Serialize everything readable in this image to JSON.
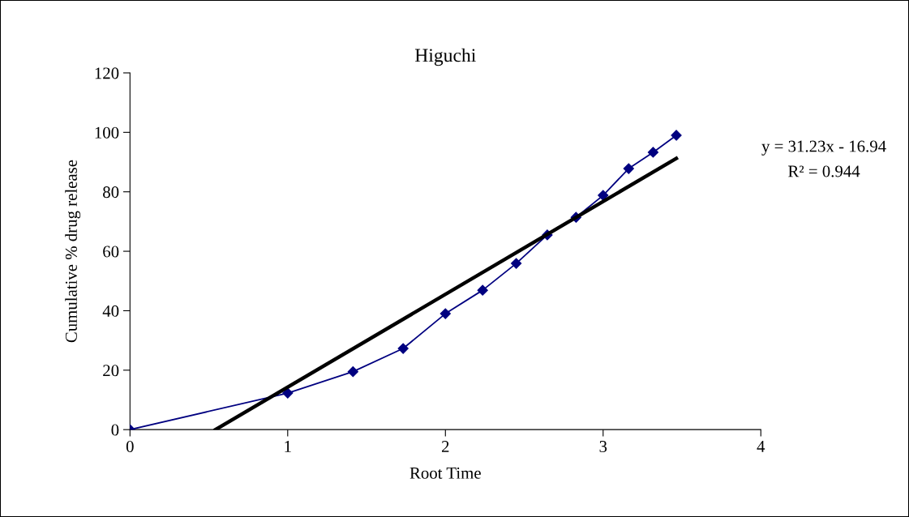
{
  "chart_data": {
    "type": "line",
    "title": "Higuchi",
    "xlabel": "Root Time",
    "ylabel": "Cumulative % drug release",
    "series": [
      {
        "color": "#000080",
        "marker": "diamond",
        "x": [
          0,
          1.0,
          1.414,
          1.732,
          2.0,
          2.236,
          2.449,
          2.646,
          2.828,
          3.0,
          3.162,
          3.317,
          3.464
        ],
        "values": [
          0,
          12.3,
          19.5,
          27.3,
          39,
          46.9,
          55.9,
          65.5,
          71.4,
          78.8,
          87.8,
          93.3,
          99
        ]
      },
      {
        "color": "#000000",
        "marker": "none",
        "x": [
          0.542,
          3.464
        ],
        "values": [
          0,
          91.24
        ]
      }
    ],
    "xlim": [
      0,
      4
    ],
    "xticks": [
      0,
      1,
      2,
      3,
      4
    ],
    "ylim": [
      0,
      120
    ],
    "yticks": [
      0,
      20,
      40,
      60,
      80,
      100,
      120
    ],
    "annotations": [
      "y = 31.23x - 16.94",
      "R² = 0.944"
    ],
    "grid": false,
    "legend": false
  }
}
